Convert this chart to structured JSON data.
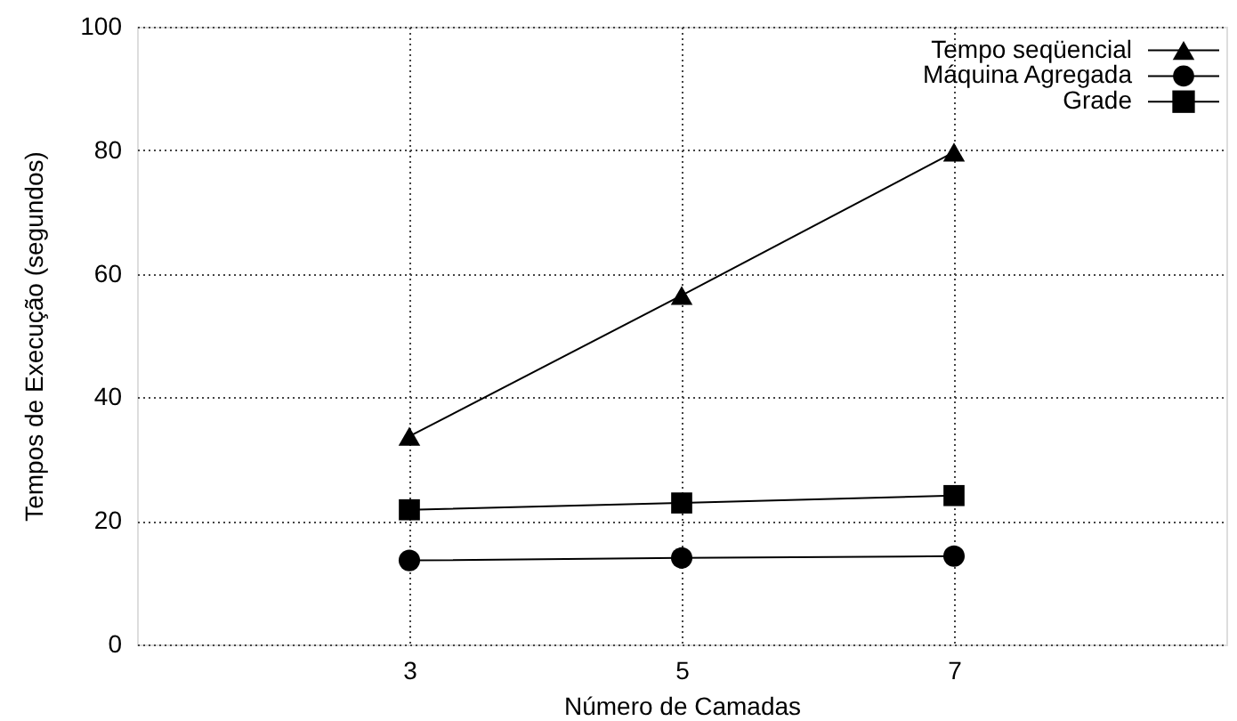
{
  "chart_data": {
    "type": "line",
    "xlabel": "Número de Camadas",
    "ylabel": "Tempos de Execução (segundos)",
    "x": [
      3,
      5,
      7
    ],
    "xlim": [
      1,
      9
    ],
    "xticks": [
      3,
      5,
      7
    ],
    "ylim": [
      0,
      100
    ],
    "yticks": [
      0,
      20,
      40,
      60,
      80,
      100
    ],
    "grid": true,
    "legend": "top right",
    "line_style": "solid",
    "series": [
      {
        "name": "Tempo seqüencial",
        "color": "#000000",
        "marker": "triangle",
        "values": [
          33.7,
          56.5,
          79.7
        ]
      },
      {
        "name": "Máquina Agregada",
        "color": "#000000",
        "marker": "circle",
        "values": [
          13.6,
          14.0,
          14.3
        ]
      },
      {
        "name": "Grade",
        "color": "#000000",
        "marker": "square",
        "values": [
          21.8,
          22.9,
          24.1
        ]
      }
    ]
  }
}
